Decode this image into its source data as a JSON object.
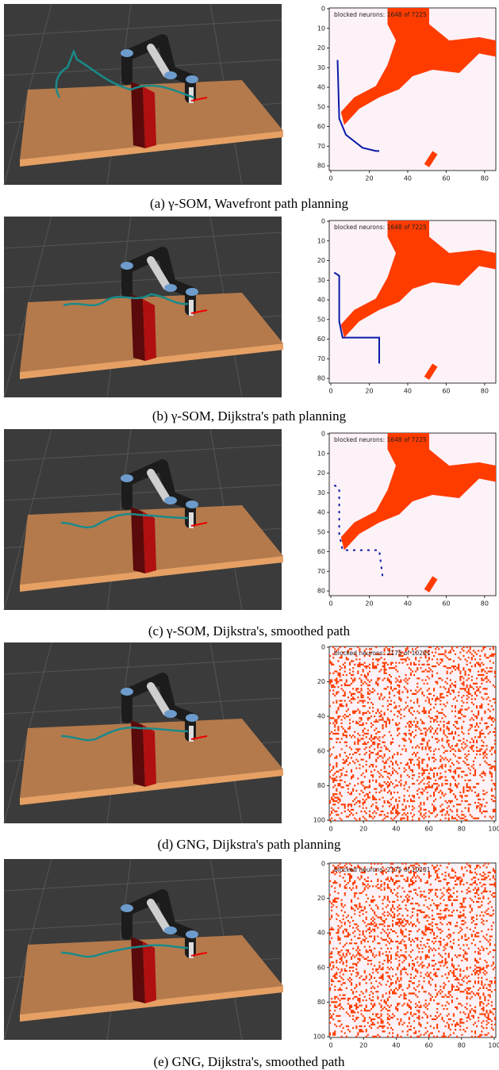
{
  "panels": [
    {
      "caption": "(a) γ-SOM, Wavefront path planning",
      "annotation": "blocked neurons: 1648 of 7225",
      "xticks": [
        0,
        20,
        40,
        60,
        80
      ],
      "yticks": [
        0,
        10,
        20,
        30,
        40,
        50,
        60,
        70,
        80
      ]
    },
    {
      "caption": "(b) γ-SOM, Dijkstra's path planning",
      "annotation": "blocked neurons: 1648 of 7225",
      "xticks": [
        0,
        20,
        40,
        60,
        80
      ],
      "yticks": [
        0,
        10,
        20,
        30,
        40,
        50,
        60,
        70,
        80
      ]
    },
    {
      "caption": "(c) γ-SOM, Dijkstra's, smoothed path",
      "annotation": "blocked neurons: 1648 of 7225",
      "xticks": [
        0,
        20,
        40,
        60,
        80
      ],
      "yticks": [
        0,
        10,
        20,
        30,
        40,
        50,
        60,
        70,
        80
      ]
    },
    {
      "caption": "(d) GNG, Dijkstra's path planning",
      "annotation": "blocked neurons: 2175 of 10201",
      "xticks": [
        0,
        20,
        40,
        60,
        80,
        100
      ],
      "yticks": [
        0,
        20,
        40,
        60,
        80,
        100
      ]
    },
    {
      "caption": "(e) GNG, Dijkstra's, smoothed path",
      "annotation": "blocked neurons: 2175 of 10201",
      "xticks": [
        0,
        20,
        40,
        60,
        80,
        100
      ],
      "yticks": [
        0,
        20,
        40,
        60,
        80,
        100
      ]
    }
  ]
}
